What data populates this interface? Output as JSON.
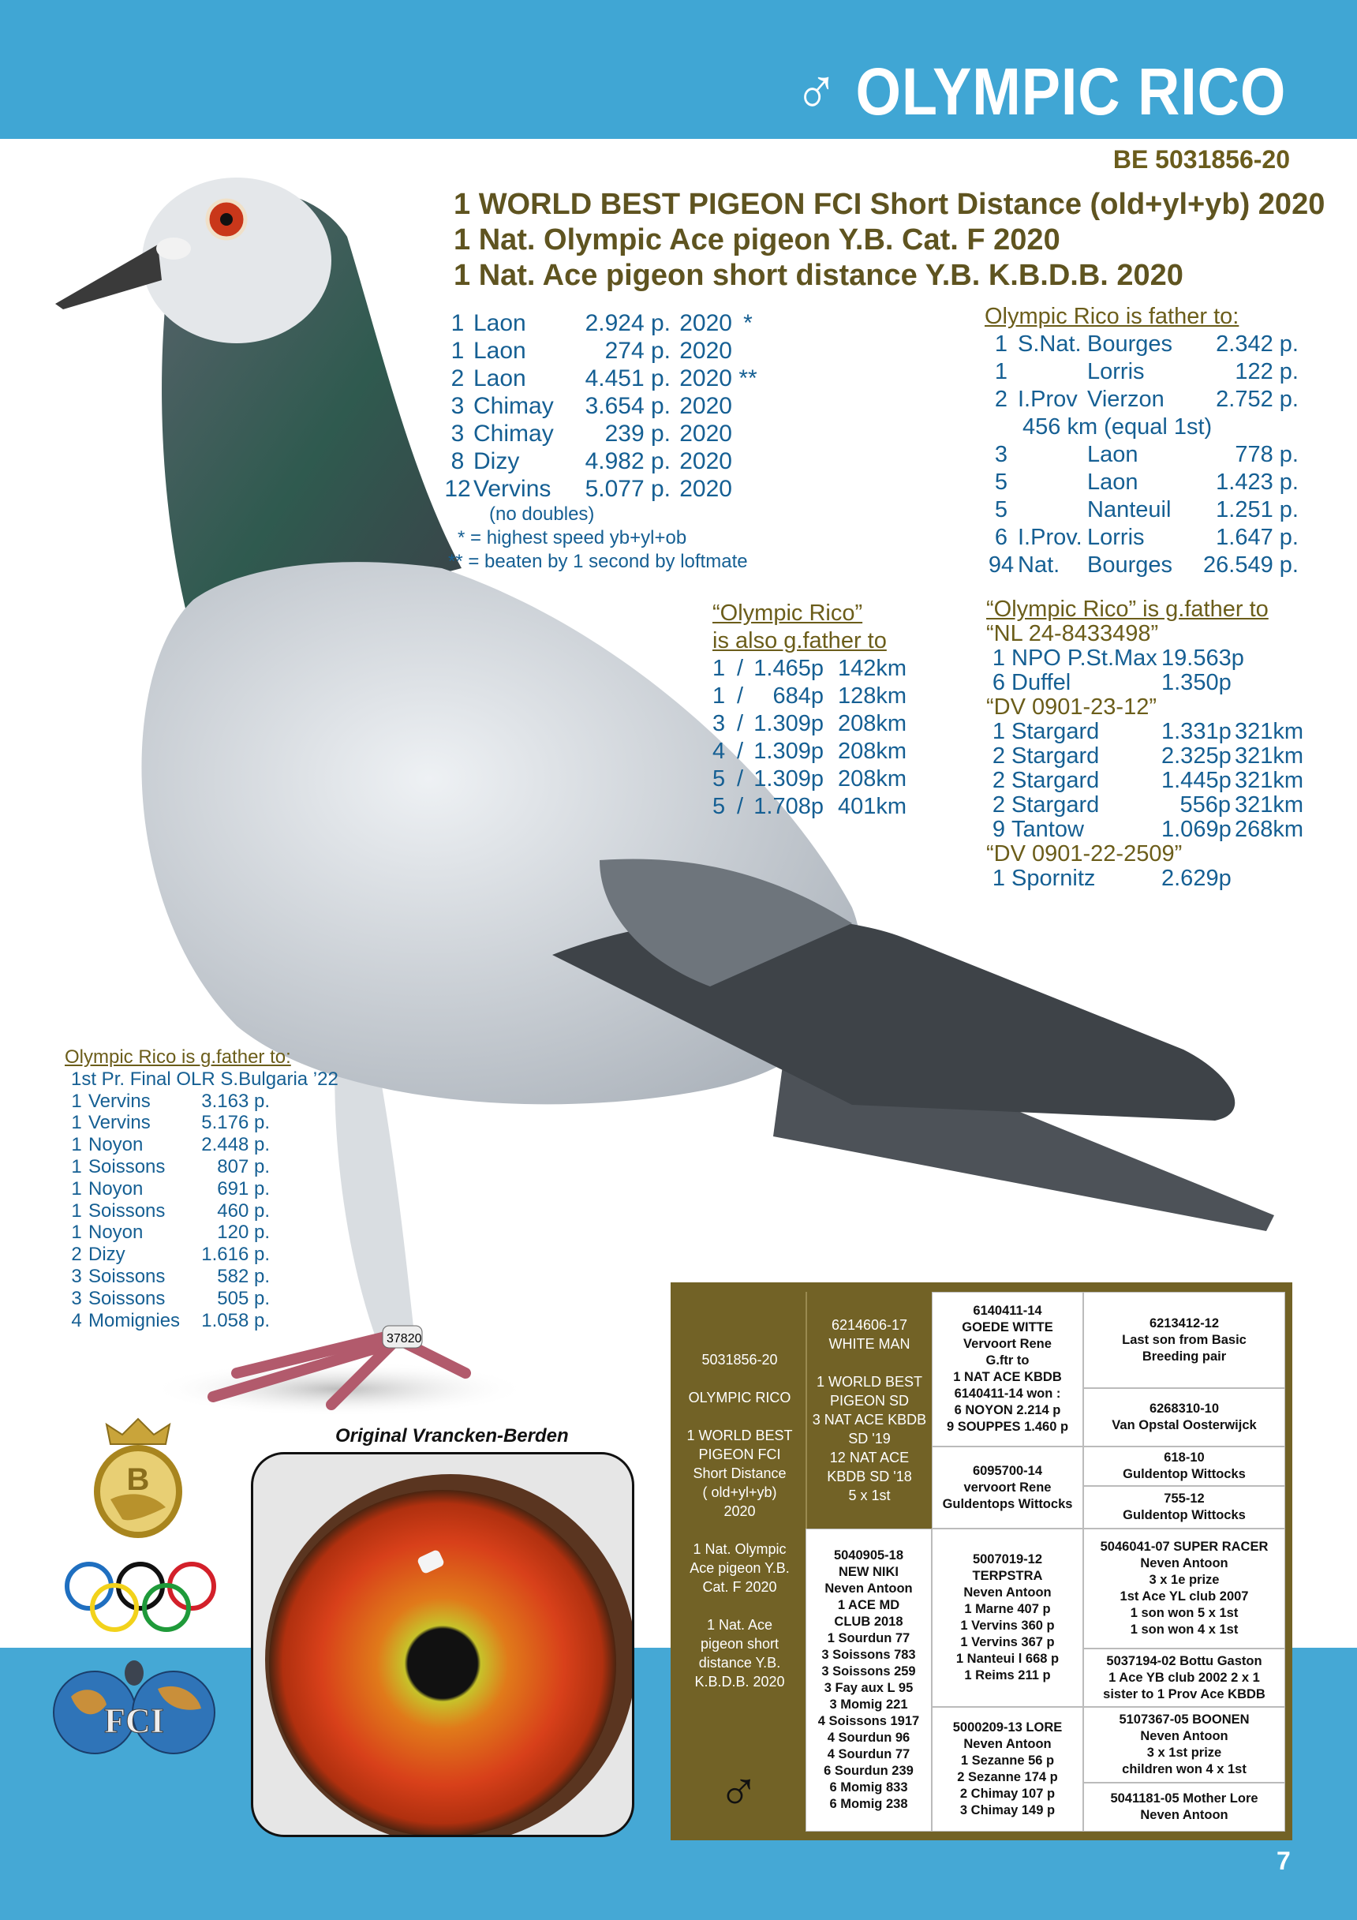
{
  "header": {
    "gender_symbol": "♂",
    "title": "OLYMPIC RICO",
    "ring": "BE 5031856-20"
  },
  "headlines": [
    "1 WORLD BEST PIGEON FCI Short Distance (old+yl+yb) 2020",
    "1 Nat. Olympic Ace pigeon Y.B. Cat. F 2020",
    "1 Nat. Ace pigeon short distance Y.B. K.B.D.B. 2020"
  ],
  "results": {
    "rows": [
      {
        "place": "1",
        "race": "Laon",
        "prize": "2.924 p.",
        "year": "2020",
        "mark": "*"
      },
      {
        "place": "1",
        "race": "Laon",
        "prize": "274 p.",
        "year": "2020",
        "mark": ""
      },
      {
        "place": "2",
        "race": "Laon",
        "prize": "4.451 p.",
        "year": "2020",
        "mark": "**"
      },
      {
        "place": "3",
        "race": "Chimay",
        "prize": "3.654 p.",
        "year": "2020",
        "mark": ""
      },
      {
        "place": "3",
        "race": "Chimay",
        "prize": "239 p.",
        "year": "2020",
        "mark": ""
      },
      {
        "place": "8",
        "race": "Dizy",
        "prize": "4.982 p.",
        "year": "2020",
        "mark": ""
      },
      {
        "place": "12",
        "race": "Vervins",
        "prize": "5.077 p.",
        "year": "2020",
        "mark": ""
      }
    ],
    "note": "(no doubles)",
    "footnotes": [
      "* = highest speed yb+yl+ob",
      "** = beaten by 1 second by loftmate"
    ]
  },
  "father_to": {
    "heading": "Olympic Rico is father to:",
    "rows": [
      {
        "place": "1",
        "level": "S.Nat.",
        "race": "Bourges",
        "prize": "2.342 p.",
        "note": ""
      },
      {
        "place": "1",
        "level": "",
        "race": "Lorris",
        "prize": "122 p.",
        "note": ""
      },
      {
        "place": "2",
        "level": "I.Prov",
        "race": "Vierzon",
        "prize": "2.752 p.",
        "note": ""
      },
      {
        "place": "",
        "level": "",
        "race": "",
        "prize": "",
        "note": "456 km (equal 1st)"
      },
      {
        "place": "3",
        "level": "",
        "race": "Laon",
        "prize": "778 p.",
        "note": ""
      },
      {
        "place": "5",
        "level": "",
        "race": "Laon",
        "prize": "1.423 p.",
        "note": ""
      },
      {
        "place": "5",
        "level": "",
        "race": "Nanteuil",
        "prize": "1.251 p.",
        "note": ""
      },
      {
        "place": "6",
        "level": "I.Prov.",
        "race": "Lorris",
        "prize": "1.647 p.",
        "note": ""
      },
      {
        "place": "94",
        "level": "Nat.",
        "race": "Bourges",
        "prize": "26.549 p.",
        "note": ""
      }
    ]
  },
  "also_gfather": {
    "heading": [
      "“Olympic Rico”",
      "is also g.father to"
    ],
    "rows": [
      {
        "place": "1",
        "sep": "/",
        "prize": "1.465p",
        "distance": "142km"
      },
      {
        "place": "1",
        "sep": "/",
        "prize": "684p",
        "distance": "128km"
      },
      {
        "place": "3",
        "sep": "/",
        "prize": "1.309p",
        "distance": "208km"
      },
      {
        "place": "4",
        "sep": "/",
        "prize": "1.309p",
        "distance": "208km"
      },
      {
        "place": "5",
        "sep": "/",
        "prize": "1.309p",
        "distance": "208km"
      },
      {
        "place": "5",
        "sep": "/",
        "prize": "1.708p",
        "distance": "401km"
      }
    ]
  },
  "gfather_right": {
    "heading": "“Olympic Rico” is g.father to",
    "groups": [
      {
        "name": "“NL 24-8433498”",
        "rows": [
          {
            "place": "1",
            "race": "NPO P.St.Max",
            "prize": "19.563p",
            "distance": ""
          },
          {
            "place": "6",
            "race": "Duffel",
            "prize": "1.350p",
            "distance": ""
          }
        ]
      },
      {
        "name": "“DV 0901-23-12”",
        "rows": [
          {
            "place": "1",
            "race": "Stargard",
            "prize": "1.331p",
            "distance": "321km"
          },
          {
            "place": "2",
            "race": "Stargard",
            "prize": "2.325p",
            "distance": "321km"
          },
          {
            "place": "2",
            "race": "Stargard",
            "prize": "1.445p",
            "distance": "321km"
          },
          {
            "place": "2",
            "race": "Stargard",
            "prize": "556p",
            "distance": "321km"
          },
          {
            "place": "9",
            "race": "Tantow",
            "prize": "1.069p",
            "distance": "268km"
          }
        ]
      },
      {
        "name": "“DV 0901-22-2509”",
        "rows": [
          {
            "place": "1",
            "race": "Spornitz",
            "prize": "2.629p",
            "distance": ""
          }
        ]
      }
    ]
  },
  "gfather_left": {
    "heading": "Olympic Rico is g.father to:",
    "subtitle": "1st Pr. Final OLR S.Bulgaria ’22",
    "rows": [
      {
        "place": "1",
        "race": "Vervins",
        "prize": "3.163 p."
      },
      {
        "place": "1",
        "race": "Vervins",
        "prize": "5.176 p."
      },
      {
        "place": "1",
        "race": "Noyon",
        "prize": "2.448 p."
      },
      {
        "place": "1",
        "race": "Soissons",
        "prize": "807 p."
      },
      {
        "place": "1",
        "race": "Noyon",
        "prize": "691 p."
      },
      {
        "place": "1",
        "race": "Soissons",
        "prize": "460 p."
      },
      {
        "place": "1",
        "race": "Noyon",
        "prize": "120 p."
      },
      {
        "place": "2",
        "race": "Dizy",
        "prize": "1.616 p."
      },
      {
        "place": "3",
        "race": "Soissons",
        "prize": "582 p."
      },
      {
        "place": "3",
        "race": "Soissons",
        "prize": "505 p."
      },
      {
        "place": "4",
        "race": "Momignies",
        "prize": "1.058 p."
      }
    ]
  },
  "photo": {
    "caption": "Original Vrancken-Berden",
    "leg_ring": "37820"
  },
  "logos": {
    "kbdb": "B",
    "fci": "FCI"
  },
  "pedigree": {
    "subject": "5031856-20\n\nOLYMPIC RICO\n\n1 WORLD BEST\nPIGEON FCI\nShort Distance\n( old+yl+yb)\n2020\n\n1 Nat. Olympic\nAce pigeon Y.B.\nCat. F 2020\n\n1 Nat. Ace\npigeon short\ndistance Y.B.\nK.B.D.B. 2020",
    "gender_symbol": "♂",
    "sire": "6214606-17\nWHITE MAN\n\n1 WORLD BEST\nPIGEON SD\n3 NAT ACE KBDB\nSD '19\n12 NAT ACE\nKBDB SD '18\n5 x 1st",
    "dam": "5040905-18\nNEW NIKI\nNeven Antoon\n1 ACE MD\nCLUB 2018\n1 Sourdun 77\n3 Soissons 783\n3 Soissons 259\n3 Fay aux L 95\n3 Momig 221\n4 Soissons 1917\n4 Sourdun 96\n4 Sourdun 77\n6 Sourdun 239\n6 Momig 833\n6 Momig 238",
    "ss": "6140411-14\nGOEDE WITTE\nVervoort Rene\nG.ftr to\n1 NAT ACE KBDB\n6140411-14 won :\n6 NOYON 2.214 p\n9 SOUPPES 1.460 p",
    "sd": "6095700-14\nvervoort Rene\nGuldentops Wittocks",
    "ds": "5007019-12\nTERPSTRA\nNeven Antoon\n1 Marne 407 p\n1 Vervins 360 p\n1 Vervins 367 p\n1 Nanteui l 668 p\n1 Reims 211 p",
    "dd": "5000209-13 LORE\nNeven Antoon\n1 Sezanne 56 p\n2 Sezanne 174 p\n2 Chimay 107 p\n3 Chimay 149 p",
    "sss": "6213412-12\nLast son from Basic\nBreeding pair",
    "ssd": "6268310-10\nVan Opstal Oosterwijck",
    "sds": "618-10\nGuldentop Wittocks",
    "sdd": "755-12\nGuldentop Wittocks",
    "dss": "5046041-07 SUPER RACER\nNeven Antoon\n3 x 1e prize\n1st Ace YL club 2007\n1 son won 5 x 1st\n1 son won 4 x 1st",
    "dsd": "5037194-02 Bottu Gaston\n1 Ace YB club 2002  2 x 1\nsister to 1 Prov Ace KBDB",
    "dds": "5107367-05 BOONEN\nNeven Antoon\n3 x 1st prize\nchildren won 4 x 1st",
    "ddd": "5041181-05 Mother Lore\nNeven Antoon"
  },
  "page_number": "7",
  "colors": {
    "band_blue": "#40a6d4",
    "olive": "#726226",
    "text_blue": "#155f93",
    "heading_olive": "#6b5d1a"
  }
}
